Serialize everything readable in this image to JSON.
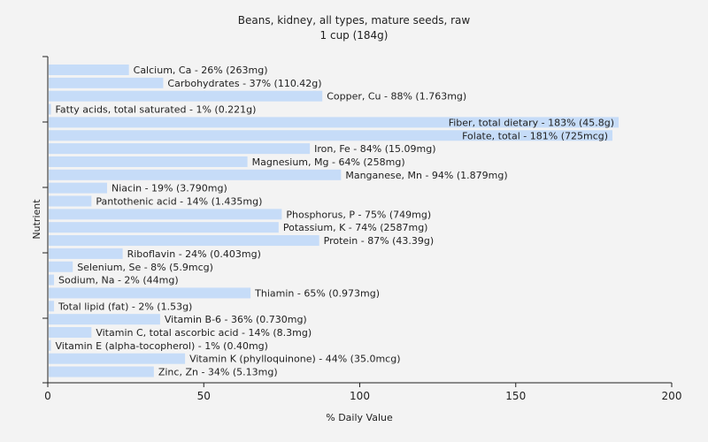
{
  "chart_data": {
    "type": "bar",
    "orientation": "horizontal",
    "title": "Beans, kidney, all types, mature seeds, raw",
    "subtitle": "1 cup (184g)",
    "xlabel": "% Daily Value",
    "ylabel": "Nutrient",
    "xlim": [
      0,
      200
    ],
    "xticks": [
      "0",
      "50",
      "100",
      "150",
      "200"
    ],
    "grid": false,
    "bar_color": "#c6dcf8",
    "background": "#f3f3f3",
    "categories": [
      "Calcium, Ca",
      "Carbohydrates",
      "Copper, Cu",
      "Fatty acids, total saturated",
      "Fiber, total dietary",
      "Folate, total",
      "Iron, Fe",
      "Magnesium, Mg",
      "Manganese, Mn",
      "Niacin",
      "Pantothenic acid",
      "Phosphorus, P",
      "Potassium, K",
      "Protein",
      "Riboflavin",
      "Selenium, Se",
      "Sodium, Na",
      "Thiamin",
      "Total lipid (fat)",
      "Vitamin B-6",
      "Vitamin C, total ascorbic acid",
      "Vitamin E (alpha-tocopherol)",
      "Vitamin K (phylloquinone)",
      "Zinc, Zn"
    ],
    "values": [
      26,
      37,
      88,
      1,
      183,
      181,
      84,
      64,
      94,
      19,
      14,
      75,
      74,
      87,
      24,
      8,
      2,
      65,
      2,
      36,
      14,
      1,
      44,
      34
    ],
    "labels": [
      "Calcium, Ca - 26% (263mg)",
      "Carbohydrates - 37% (110.42g)",
      "Copper, Cu - 88% (1.763mg)",
      "Fatty acids, total saturated - 1% (0.221g)",
      "Fiber, total dietary - 183% (45.8g)",
      "Folate, total - 181% (725mcg)",
      "Iron, Fe - 84% (15.09mg)",
      "Magnesium, Mg - 64% (258mg)",
      "Manganese, Mn - 94% (1.879mg)",
      "Niacin - 19% (3.790mg)",
      "Pantothenic acid - 14% (1.435mg)",
      "Phosphorus, P - 75% (749mg)",
      "Potassium, K - 74% (2587mg)",
      "Protein - 87% (43.39g)",
      "Riboflavin - 24% (0.403mg)",
      "Selenium, Se - 8% (5.9mcg)",
      "Sodium, Na - 2% (44mg)",
      "Thiamin - 65% (0.973mg)",
      "Total lipid (fat) - 2% (1.53g)",
      "Vitamin B-6 - 36% (0.730mg)",
      "Vitamin C, total ascorbic acid - 14% (8.3mg)",
      "Vitamin E (alpha-tocopherol) - 1% (0.40mg)",
      "Vitamin K (phylloquinone) - 44% (35.0mcg)",
      "Zinc, Zn - 34% (5.13mg)"
    ]
  }
}
